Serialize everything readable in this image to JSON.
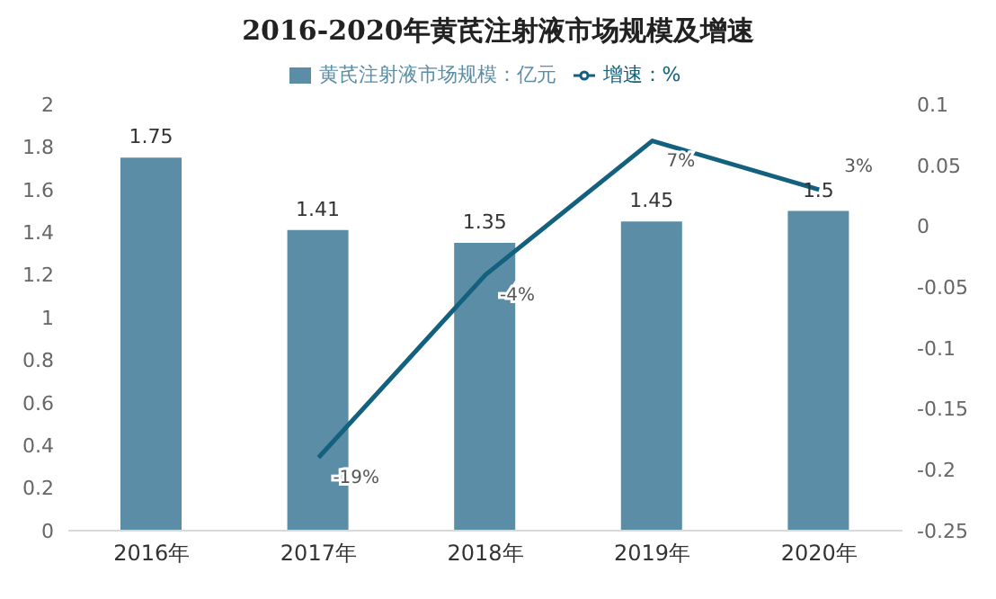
{
  "chart_data": {
    "type": "bar",
    "title": "2016-2020年黄芪注射液市场规模及增速",
    "categories": [
      "2016年",
      "2017年",
      "2018年",
      "2019年",
      "2020年"
    ],
    "series": [
      {
        "name": "黄芪注射液市场规模：亿元",
        "color": "#5b8ea6",
        "values": [
          1.75,
          1.41,
          1.35,
          1.45,
          1.5
        ],
        "value_labels": [
          "1.75",
          "1.41",
          "1.35",
          "1.45",
          "1.5"
        ]
      },
      {
        "name": "增速：%",
        "type": "line",
        "axis": "y2",
        "color": "#13617e",
        "values": [
          null,
          -0.19,
          -0.04,
          0.07,
          0.03
        ],
        "value_labels": [
          null,
          "-19%",
          "-4%",
          "7%",
          "3%"
        ]
      }
    ],
    "ylim": [
      0,
      2
    ],
    "yticks": [
      0,
      0.2,
      0.4,
      0.6,
      0.8,
      1,
      1.2,
      1.4,
      1.6,
      1.8,
      2
    ],
    "y2lim": [
      -0.25,
      0.1
    ],
    "y2ticks": [
      -0.25,
      -0.2,
      -0.15,
      -0.1,
      -0.05,
      0,
      0.05,
      0.1
    ],
    "grid": false,
    "legend": "top",
    "marker": "none",
    "line_style": "solid"
  }
}
